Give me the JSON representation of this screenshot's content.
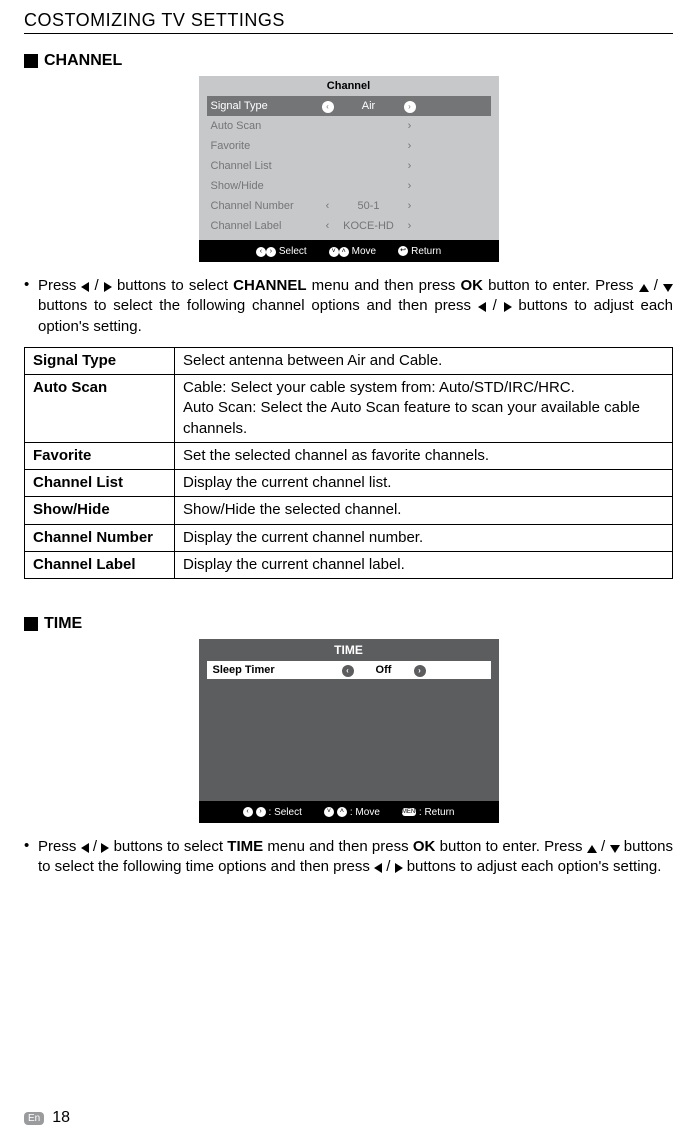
{
  "page": {
    "header": "COSTOMIZING TV SETTINGS",
    "lang_badge": "En",
    "page_number": "18"
  },
  "channel": {
    "heading": "CHANNEL",
    "osd": {
      "title": "Channel",
      "rows": [
        {
          "label": "Signal Type",
          "left": "‹",
          "value": "Air",
          "right": "›",
          "active": true
        },
        {
          "label": "Auto Scan",
          "left": "",
          "value": "",
          "right": "›",
          "active": false
        },
        {
          "label": "Favorite",
          "left": "",
          "value": "",
          "right": "›",
          "active": false
        },
        {
          "label": "Channel List",
          "left": "",
          "value": "",
          "right": "›",
          "active": false
        },
        {
          "label": "Show/Hide",
          "left": "",
          "value": "",
          "right": "›",
          "active": false
        },
        {
          "label": "Channel Number",
          "left": "‹",
          "value": "50-1",
          "right": "›",
          "active": false
        },
        {
          "label": "Channel Label",
          "left": "‹",
          "value": "KOCE-HD",
          "right": "›",
          "active": false
        }
      ],
      "footer": {
        "select": "Select",
        "move": "Move",
        "ret": "Return"
      }
    },
    "instruction": {
      "part1": "Press ",
      "part2": " buttons to select ",
      "menu_name": "CHANNEL",
      "part3": " menu and then press ",
      "ok": "OK",
      "part4": " button to enter. Press ",
      "part5": " buttons to select the following channel options and then press ",
      "part6": " buttons to adjust each option's setting."
    },
    "table": [
      {
        "k": "Signal Type",
        "v": "Select antenna between Air and Cable."
      },
      {
        "k": "Auto Scan",
        "v": "Cable: Select your cable system from: Auto/STD/IRC/HRC.\nAuto Scan: Select the Auto Scan feature to scan your available cable channels."
      },
      {
        "k": "Favorite",
        "v": "Set the selected channel as favorite channels."
      },
      {
        "k": "Channel List",
        "v": "Display the current channel list."
      },
      {
        "k": "Show/Hide",
        "v": "Show/Hide the selected channel."
      },
      {
        "k": "Channel Number",
        "v": "Display the current channel number."
      },
      {
        "k": "Channel Label",
        "v": "Display the current channel label."
      }
    ]
  },
  "time": {
    "heading": "TIME",
    "osd": {
      "title": "TIME",
      "row": {
        "label": "Sleep Timer",
        "value": "Off"
      },
      "footer": {
        "select": ":  Select",
        "move": ":  Move",
        "ret": ":  Return"
      }
    },
    "instruction": {
      "part1": "Press ",
      "part2": " buttons to select ",
      "menu_name": "TIME",
      "part3": " menu and then press ",
      "ok": "OK",
      "part4": " button to enter. Press ",
      "part5": " buttons to select the following time options and then press ",
      "part6": " buttons to adjust each option's setting."
    }
  }
}
